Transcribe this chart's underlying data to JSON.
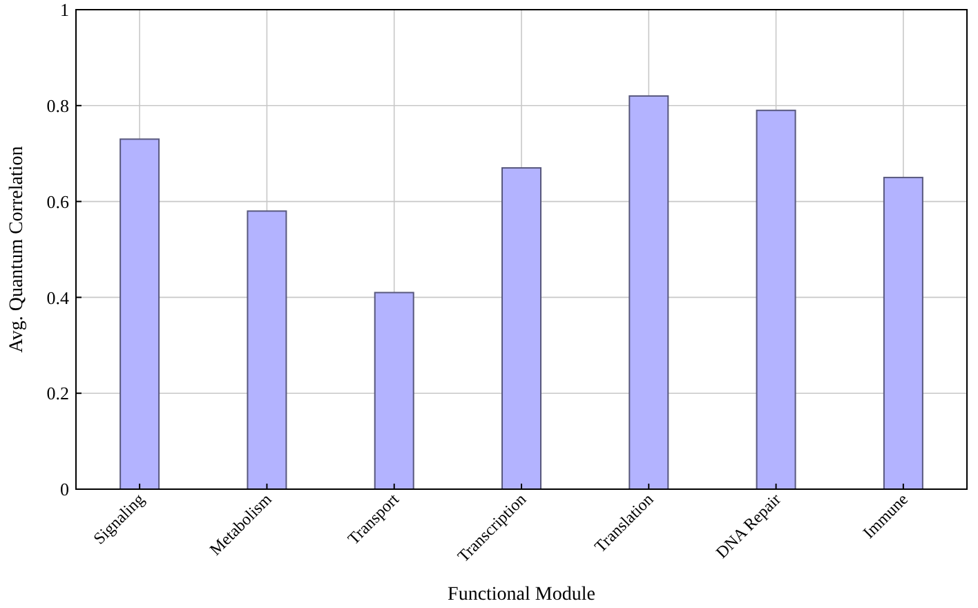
{
  "chart_data": {
    "type": "bar",
    "xlabel": "Functional Module",
    "ylabel": "Avg. Quantum Correlation",
    "categories": [
      "Signaling",
      "Metabolism",
      "Transport",
      "Transcription",
      "Translation",
      "DNA Repair",
      "Immune"
    ],
    "values": [
      0.73,
      0.58,
      0.41,
      0.67,
      0.82,
      0.79,
      0.65
    ],
    "color": "#b3b3ff",
    "ylim": [
      0,
      1
    ],
    "yticks": [
      0,
      0.2,
      0.4,
      0.6,
      0.8,
      1
    ],
    "grid": true
  }
}
